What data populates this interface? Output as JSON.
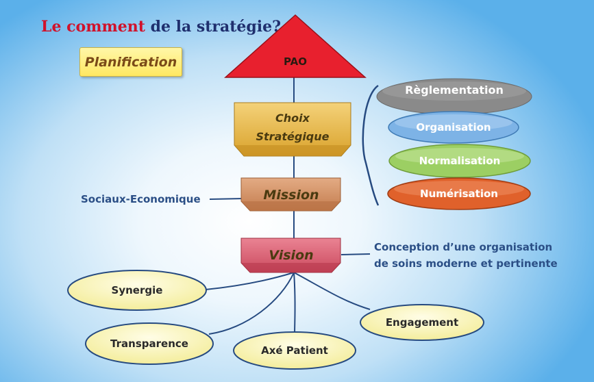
{
  "title": {
    "accent": "Le comment",
    "rest": " de la stratégie?"
  },
  "planification": "Planification",
  "pao": "PAO",
  "choix": {
    "line1": "Choix",
    "line2": "Stratégique"
  },
  "mission": "Mission",
  "vision": "Vision",
  "sociaux": "Sociaux-Economique",
  "conception": {
    "line1": "Conception d’une organisation",
    "line2": "de soins moderne et pertinente"
  },
  "pillars": [
    {
      "label": "Règlementation",
      "color": "#8a8a8a"
    },
    {
      "label": "Organisation",
      "color": "#7db3e6"
    },
    {
      "label": "Normalisation",
      "color": "#9ccf63"
    },
    {
      "label": "Numérisation",
      "color": "#e0612b"
    }
  ],
  "values": {
    "synergie": "Synergie",
    "transparence": "Transparence",
    "axe": "Axé Patient",
    "engagement": "Engagement"
  },
  "colors": {
    "title_accent": "#d0122b",
    "title_main": "#1f2f6e",
    "pao": "#e8202e",
    "choix": "#e3b23c",
    "mission": "#cf8c60",
    "vision": "#d85a6e",
    "connector": "#264a80",
    "value_fill": "#fbf7b0"
  }
}
